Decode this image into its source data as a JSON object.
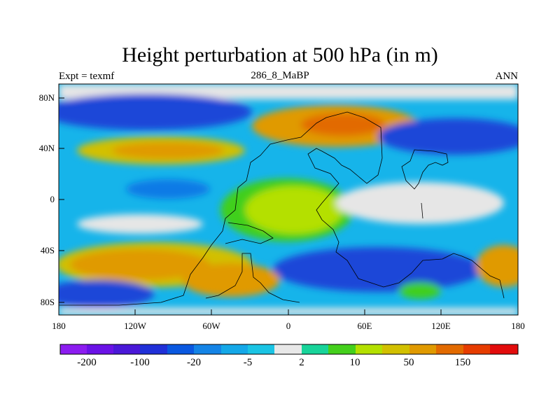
{
  "plot": {
    "title": "Height perturbation at 500 hPa (in m)",
    "left_label": "Expt = texmf",
    "center_label": "286_8_MaBP",
    "right_label": "ANN"
  },
  "axes": {
    "y_ticks": [
      "80N",
      "40N",
      "0",
      "40S",
      "80S"
    ],
    "x_ticks": [
      "180",
      "120W",
      "60W",
      "0",
      "60E",
      "120E",
      "180"
    ]
  },
  "colorbar": {
    "colors": [
      "#8c1cf0",
      "#6a12e6",
      "#4a18d8",
      "#2030d8",
      "#0a58e0",
      "#1484e6",
      "#14a8e8",
      "#1ac4e4",
      "#e8e8e8",
      "#18d49a",
      "#44d01c",
      "#b4e000",
      "#d2c000",
      "#e09a00",
      "#e26a00",
      "#e63c00",
      "#e20c0c"
    ],
    "labels": [
      "-200",
      "-100",
      "-20",
      "-5",
      "2",
      "10",
      "50",
      "150"
    ]
  },
  "palette": {
    "blue": "#1e46d8",
    "mid_blue": "#0f7ae6",
    "cyan": "#16b4ea",
    "gray": "#e6e6e6",
    "green": "#40cf1c",
    "yellow_green": "#b4e000",
    "yellow": "#d2c000",
    "orange": "#e09a00",
    "dark_orange": "#e26a00"
  }
}
